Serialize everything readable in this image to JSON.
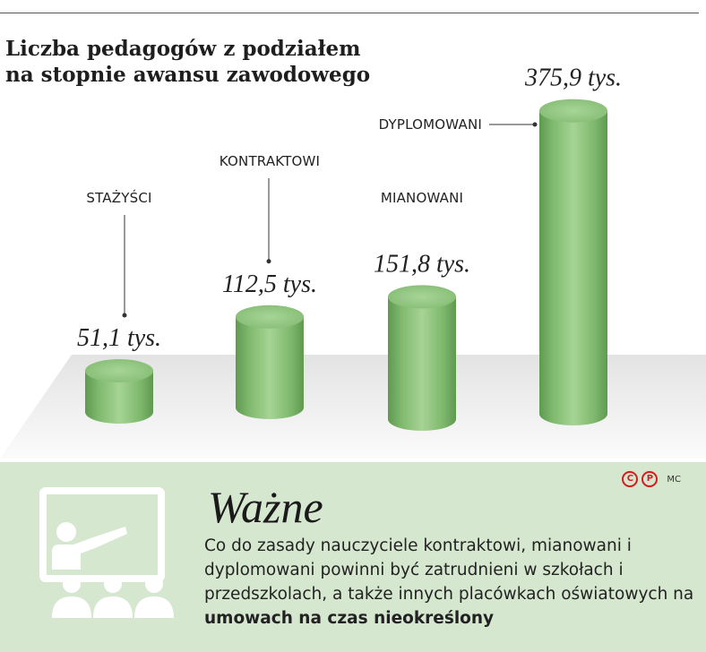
{
  "title_lines": [
    "Liczba pedagogów z podziałem",
    "na stopnie awansu zawodowego"
  ],
  "chart_data": {
    "type": "bar",
    "title": "Liczba pedagogów z podziałem na stopnie awansu zawodowego",
    "categories": [
      "STAŻYŚCI",
      "KONTRAKTOWI",
      "MIANOWANI",
      "DYPLOMOWANI"
    ],
    "values": [
      51.1,
      112.5,
      151.8,
      375.9
    ],
    "value_labels": [
      "51,1 tys.",
      "112,5 tys.",
      "151,8 tys.",
      "375,9 tys."
    ],
    "unit": "tys.",
    "bar_color": "#7fb96e"
  },
  "credit": {
    "symbols": [
      "C",
      "P"
    ],
    "author": "MC",
    "color": "#d71920"
  },
  "info": {
    "heading": "Ważne",
    "text_before": "Co do zasady nauczyciele kontraktowi, mianowani i dyplomowani powinni być zatrudnieni w szkołach i przedszkolach, a także innych placówkach oświatowych na ",
    "text_bold": "umowach na czas nieokreślony",
    "icon": "teacher-classroom-icon",
    "panel_color": "#d6e7cf"
  }
}
